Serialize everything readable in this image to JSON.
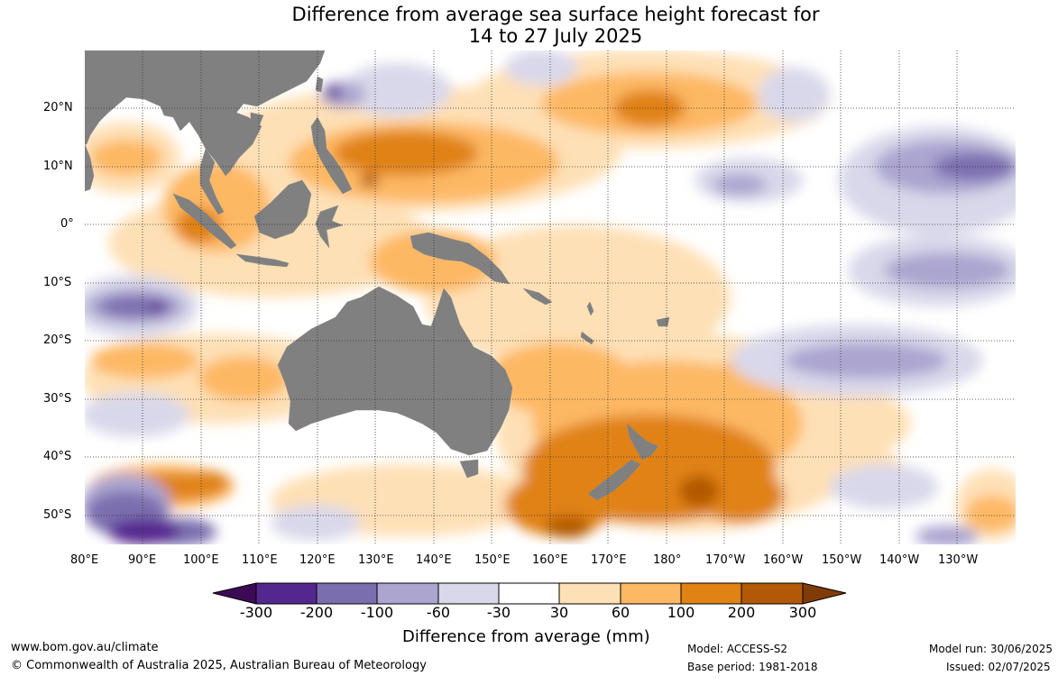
{
  "title": {
    "line1": "Difference from average sea surface height forecast for",
    "line2": "14 to 27 July 2025"
  },
  "map": {
    "lon_range_degE": [
      80,
      240
    ],
    "lat_range": [
      -55,
      30
    ],
    "lat_labels": [
      "20°N",
      "10°N",
      "0°",
      "10°S",
      "20°S",
      "30°S",
      "40°S",
      "50°S"
    ],
    "lon_labels": [
      "80°E",
      "90°E",
      "100°E",
      "110°E",
      "120°E",
      "130°E",
      "140°E",
      "150°E",
      "160°E",
      "170°E",
      "180°",
      "170°W",
      "160°W",
      "150°W",
      "140°W",
      "130°W"
    ],
    "land_color": "#808080",
    "grid": "dotted"
  },
  "colorbar": {
    "title": "Difference from average (mm)",
    "tick_labels": [
      "-300",
      "-200",
      "-100",
      "-60",
      "-30",
      "30",
      "60",
      "100",
      "200",
      "300"
    ],
    "colors": [
      "#3d0a55",
      "#54278f",
      "#7b6eaf",
      "#aba5d0",
      "#d9d8ea",
      "#ffffff",
      "#fee0b6",
      "#fdb863",
      "#e08214",
      "#b35806",
      "#7f3b08"
    ]
  },
  "footer": {
    "website": "www.bom.gov.au/climate",
    "copyright": "© Commonwealth of Australia 2025, Australian Bureau of Meteorology",
    "model": "Model: ACCESS-S2",
    "base_period": "Base period: 1981-2018",
    "model_run": "Model run: 30/06/2025",
    "issued": "Issued: 02/07/2025"
  }
}
